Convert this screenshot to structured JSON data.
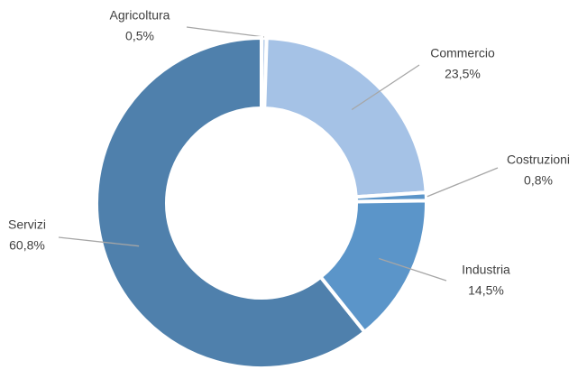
{
  "chart_data": {
    "type": "donut",
    "categories": [
      "Agricoltura",
      "Commercio",
      "Costruzioni",
      "Industria",
      "Servizi"
    ],
    "values": [
      0.5,
      23.5,
      0.8,
      14.5,
      60.8
    ],
    "value_labels": [
      "0,5%",
      "23,5%",
      "0,8%",
      "14,5%",
      "60,8%"
    ],
    "colors": [
      "#bcd0ea",
      "#a5c2e6",
      "#5b95c9",
      "#5b95c9",
      "#4f80ac"
    ]
  }
}
